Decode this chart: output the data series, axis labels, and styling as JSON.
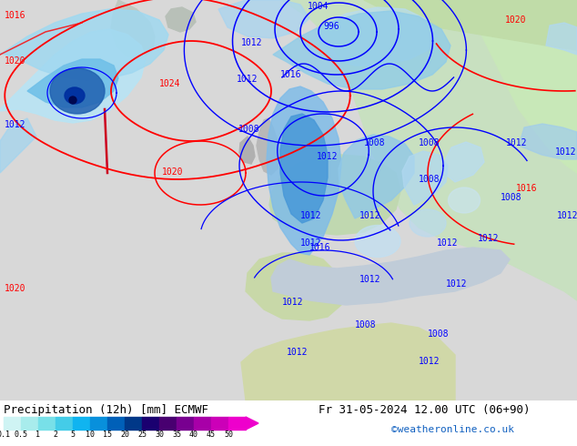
{
  "title_left": "Precipitation (12h) [mm] ECMWF",
  "title_right": "Fr 31-05-2024 12.00 UTC (06+90)",
  "credit": "©weatheronline.co.uk",
  "colorbar_levels": [
    "0.1",
    "0.5",
    "1",
    "2",
    "5",
    "10",
    "15",
    "20",
    "25",
    "30",
    "35",
    "40",
    "45",
    "50"
  ],
  "colorbar_colors": [
    "#cff4f4",
    "#a8ecec",
    "#78e0e8",
    "#44cce8",
    "#10b4f0",
    "#0890dc",
    "#0060b8",
    "#003888",
    "#1a0070",
    "#480070",
    "#780090",
    "#a800a8",
    "#cc00b8",
    "#ee00cc"
  ],
  "sea_color": "#d8d8d8",
  "land_color_europe": "#c8e0c0",
  "land_color_north": "#b8d4b0",
  "precip_light": "#b0e4f4",
  "precip_mid": "#78c8ee",
  "precip_dark": "#3090cc",
  "precip_vdark": "#1040a0",
  "fig_width": 6.34,
  "fig_height": 4.9,
  "dpi": 100,
  "title_fontsize": 9,
  "credit_fontsize": 8,
  "credit_color": "#1060c0",
  "label_fontsize": 7
}
